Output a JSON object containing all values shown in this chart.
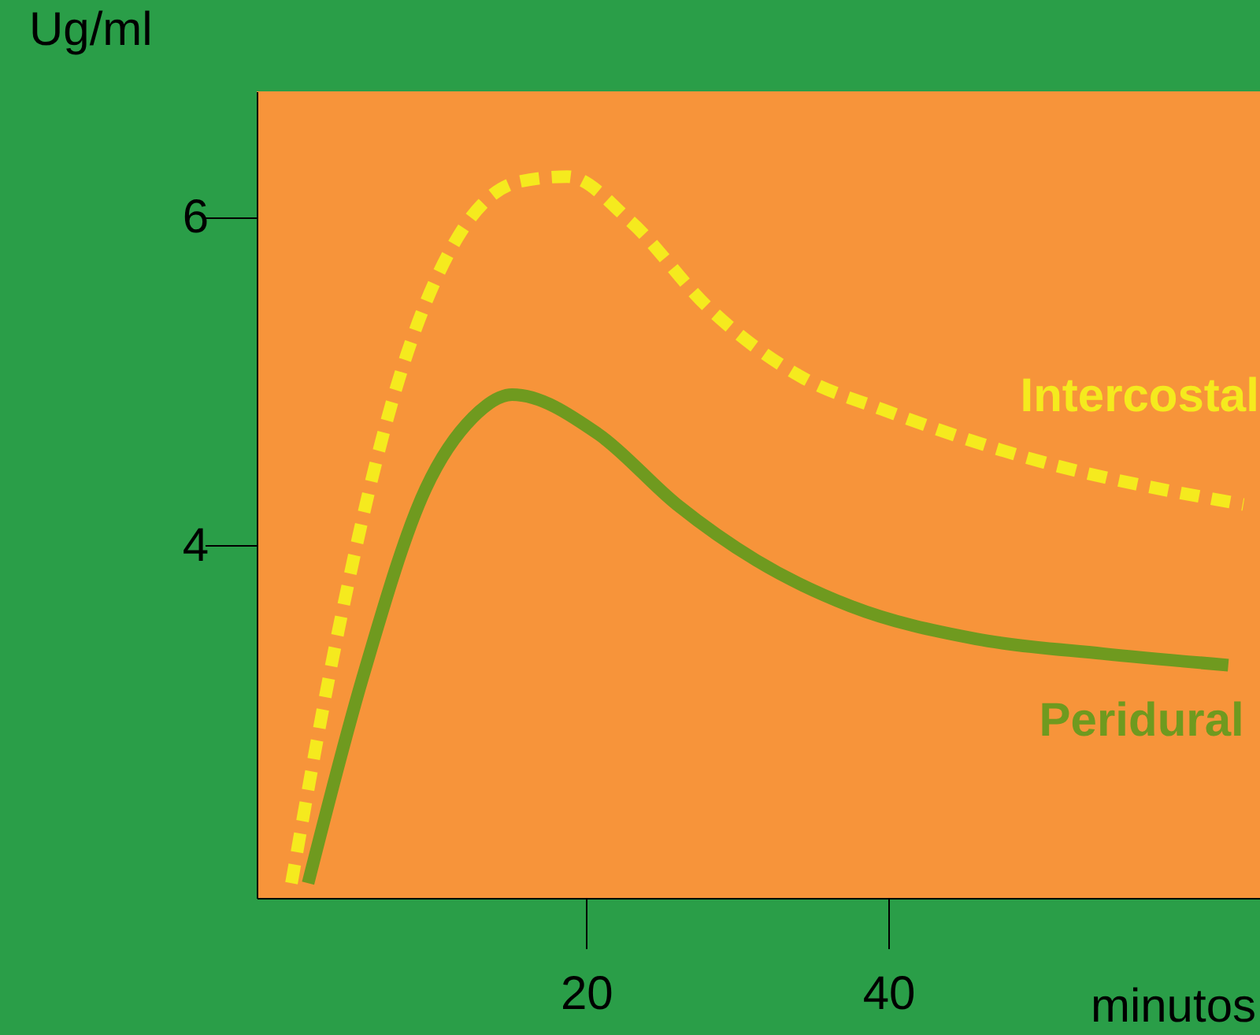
{
  "chart_data": {
    "type": "line",
    "xlabel": "minutos",
    "ylabel": "Ug/ml",
    "xlim": [
      -1.8,
      64.6
    ],
    "ylim": [
      1.85,
      6.77
    ],
    "xticks": [
      20,
      40
    ],
    "yticks": [
      4,
      6
    ],
    "grid": false,
    "marker": "none",
    "series": [
      {
        "name": "Intercostal",
        "color": "#f5ea1e",
        "line_style": "dashed",
        "x": [
          0.5,
          3.6,
          7.3,
          11.5,
          15.6,
          18.75,
          22.9,
          28.1,
          34.4,
          39.6,
          49,
          63.5
        ],
        "values": [
          1.94,
          3.48,
          4.92,
          5.88,
          6.22,
          6.25,
          5.98,
          5.45,
          5.02,
          4.83,
          4.54,
          4.25
        ]
      },
      {
        "name": "Peridural",
        "color": "#6f9a1f",
        "line_style": "solid",
        "x": [
          1.6,
          5.2,
          9.4,
          12.5,
          15.1,
          20.8,
          26,
          31.25,
          37.5,
          45.8,
          54.2,
          62.5
        ],
        "values": [
          1.94,
          3.19,
          4.35,
          4.78,
          4.92,
          4.68,
          4.25,
          3.91,
          3.63,
          3.43,
          3.34,
          3.27
        ]
      }
    ]
  }
}
